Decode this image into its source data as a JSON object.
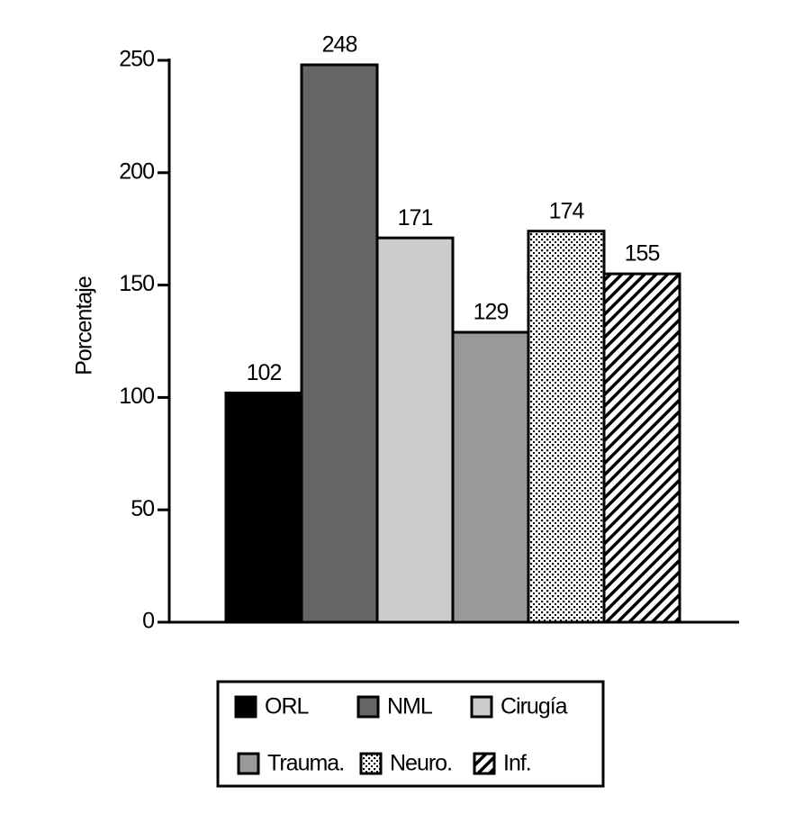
{
  "chart_data": {
    "type": "bar",
    "y_label": "Porcentaje",
    "ylim": [
      0,
      250
    ],
    "yticks": [
      0,
      50,
      100,
      150,
      200,
      250
    ],
    "series": [
      {
        "name": "ORL",
        "color": "#000000",
        "values": [
          102
        ]
      },
      {
        "name": "NML",
        "color": "#666666",
        "values": [
          248
        ]
      },
      {
        "name": "Cirugía",
        "color": "#cccccc",
        "values": [
          171
        ]
      },
      {
        "name": "Trauma.",
        "color": "#999999",
        "values": [
          129
        ]
      },
      {
        "name": "Neuro.",
        "color": "#ffffff",
        "pattern": "dots",
        "values": [
          174
        ]
      },
      {
        "name": "Inf.",
        "color": "#ffffff",
        "pattern": "diagonal",
        "values": [
          155
        ]
      }
    ],
    "legend": "bottom"
  }
}
